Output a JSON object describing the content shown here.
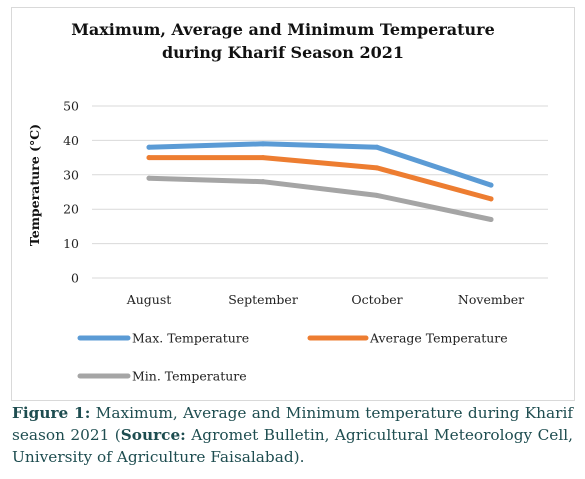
{
  "chart_data": {
    "type": "line",
    "title_lines": [
      "Maximum, Average and Minimum Temperature",
      "during Kharif Season 2021"
    ],
    "xlabel": "",
    "ylabel": "Temperature (°C)",
    "categories": [
      "August",
      "September",
      "October",
      "November"
    ],
    "ylim": [
      0,
      50
    ],
    "yticks": [
      0,
      10,
      20,
      30,
      40,
      50
    ],
    "grid": true,
    "legend_position": "bottom",
    "series": [
      {
        "name": "Max. Temperature",
        "color": "#5b9bd5",
        "values": [
          38,
          39,
          38,
          27
        ]
      },
      {
        "name": "Average Temperature",
        "color": "#ed7d31",
        "values": [
          35,
          35,
          32,
          23
        ]
      },
      {
        "name": "Min. Temperature",
        "color": "#a5a5a5",
        "values": [
          29,
          28,
          24,
          17
        ]
      }
    ]
  },
  "caption": {
    "label": "Figure 1:",
    "text_part1": " Maximum, Average and Minimum temperature during Kharif season 2021 (",
    "source_label": "Source:",
    "text_part2": " Agromet Bulletin, Agricultural Meteorology Cell, University of Agriculture Faisalabad)."
  }
}
